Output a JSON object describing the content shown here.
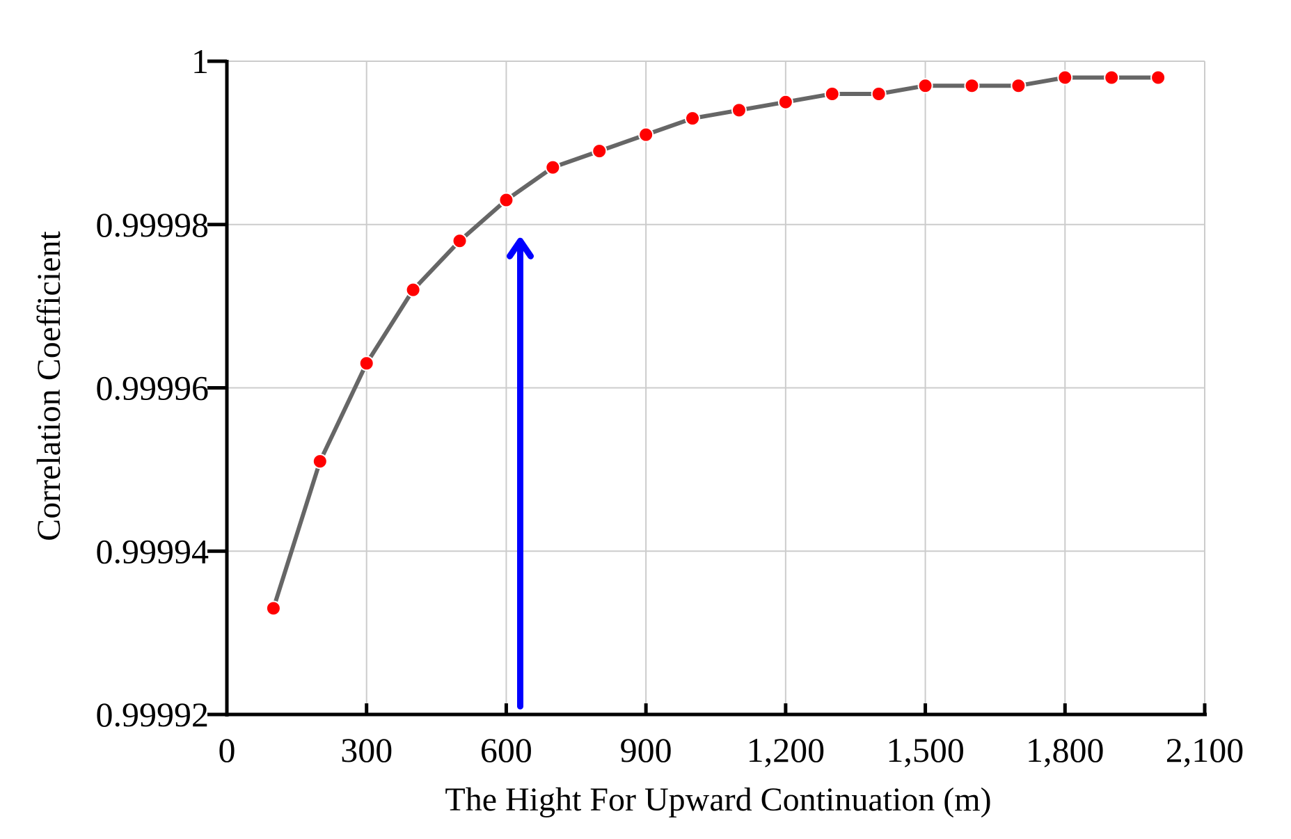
{
  "chart_data": {
    "type": "line",
    "xlabel": "The Hight For Upward Continuation (m)",
    "ylabel": "Correlation Coefficient",
    "xlim": [
      0,
      2100
    ],
    "ylim": [
      0.99992,
      1
    ],
    "x_ticks": [
      0,
      300,
      600,
      900,
      1200,
      1500,
      1800,
      2100
    ],
    "x_tick_labels": [
      "0",
      "300",
      "600",
      "900",
      "1,200",
      "1,500",
      "1,800",
      "2,100"
    ],
    "y_ticks": [
      0.99992,
      0.99994,
      0.99996,
      0.99998,
      1
    ],
    "y_tick_labels": [
      "0.99992",
      "0.99994",
      "0.99996",
      "0.99998",
      "1"
    ],
    "grid": true,
    "series": [
      {
        "x": [
          100,
          200,
          300,
          400,
          500,
          600,
          700,
          800,
          900,
          1000,
          1100,
          1200,
          1300,
          1400,
          1500,
          1600,
          1700,
          1800,
          1900,
          2000
        ],
        "y": [
          0.999933,
          0.999951,
          0.999963,
          0.999972,
          0.999978,
          0.999983,
          0.999987,
          0.999989,
          0.999991,
          0.999993,
          0.999994,
          0.999995,
          0.999996,
          0.999996,
          0.999997,
          0.999997,
          0.999997,
          0.999998,
          0.999998,
          0.999998
        ],
        "line_color": "#666666",
        "marker_color": "#ff0000"
      }
    ],
    "annotations": [
      {
        "type": "arrow",
        "x": 630,
        "y_from": 0.999921,
        "y_to": 0.999978,
        "color": "#0000ff"
      }
    ]
  }
}
